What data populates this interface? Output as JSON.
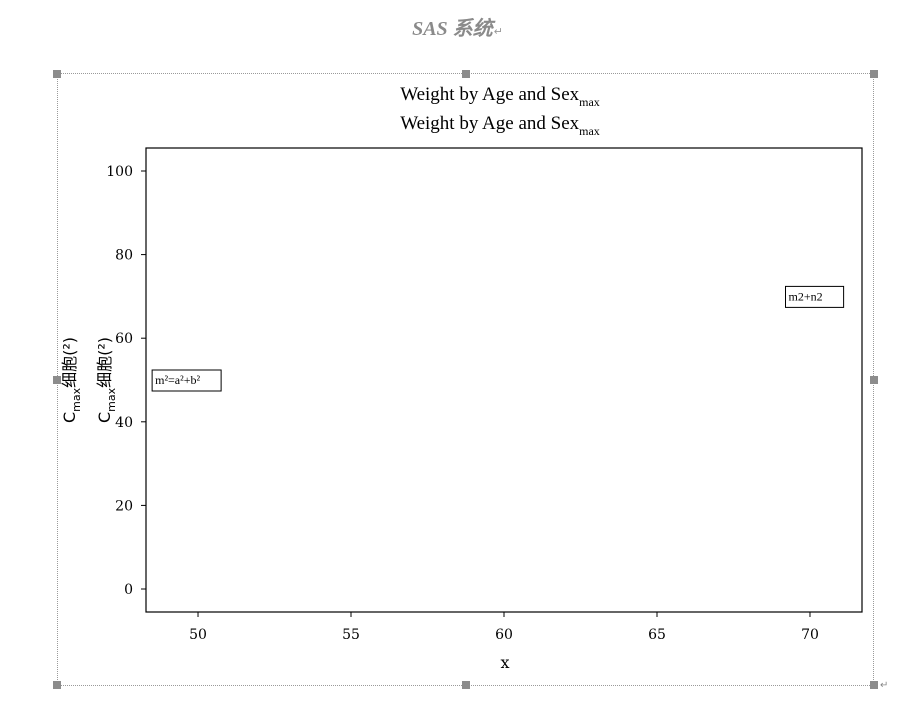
{
  "document": {
    "heading": "SAS 系统",
    "paragraph_mark": "↵"
  },
  "chart_data": {
    "type": "scatter",
    "title_lines": [
      {
        "main": "Weight by Age and Sex",
        "sub": "max"
      },
      {
        "main": "Weight by Age and Sex",
        "sub": "max"
      }
    ],
    "xlabel": "x",
    "ylabel_lines": [
      {
        "main": "C",
        "sub": "max",
        "rest": "细胞(²)"
      },
      {
        "main": "C",
        "sub": "max",
        "rest": "细胞(²)"
      }
    ],
    "xlim": [
      48.3,
      71.7
    ],
    "ylim": [
      -5.5,
      105.5
    ],
    "xticks": [
      50,
      55,
      60,
      65,
      70
    ],
    "yticks": [
      0,
      20,
      40,
      60,
      80,
      100
    ],
    "grid": false,
    "series": [],
    "annotations": [
      {
        "text": "m²=a²+b²",
        "x": 48.5,
        "y": 50
      },
      {
        "text": "m2+n2",
        "x": 69.2,
        "y": 70
      }
    ]
  }
}
